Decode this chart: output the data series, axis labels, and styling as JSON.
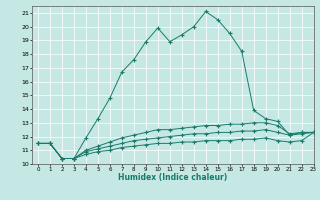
{
  "title": "",
  "xlabel": "Humidex (Indice chaleur)",
  "xlim": [
    -0.5,
    23
  ],
  "ylim": [
    10,
    21.5
  ],
  "xticks": [
    0,
    1,
    2,
    3,
    4,
    5,
    6,
    7,
    8,
    9,
    10,
    11,
    12,
    13,
    14,
    15,
    16,
    17,
    18,
    19,
    20,
    21,
    22,
    23
  ],
  "yticks": [
    10,
    11,
    12,
    13,
    14,
    15,
    16,
    17,
    18,
    19,
    20,
    21
  ],
  "bg_color": "#c5e8e4",
  "grid_outer_color": "#e8d0d0",
  "line_color": "#1a7a6a",
  "grid_color": "#ffffff",
  "line1_x": [
    0,
    1,
    2,
    3,
    4,
    5,
    6,
    7,
    8,
    9,
    10,
    11,
    12,
    13,
    14,
    15,
    16,
    17,
    18,
    19,
    20,
    21,
    22,
    23
  ],
  "line1_y": [
    11.5,
    11.5,
    10.4,
    10.4,
    11.9,
    13.3,
    14.8,
    16.7,
    17.6,
    18.9,
    19.9,
    18.9,
    19.4,
    20.0,
    21.1,
    20.5,
    19.5,
    18.2,
    13.9,
    13.3,
    13.1,
    12.1,
    12.3,
    12.3
  ],
  "line2_x": [
    0,
    1,
    2,
    3,
    4,
    5,
    6,
    7,
    8,
    9,
    10,
    11,
    12,
    13,
    14,
    15,
    16,
    17,
    18,
    19,
    20,
    21,
    22,
    23
  ],
  "line2_y": [
    11.5,
    11.5,
    10.4,
    10.4,
    11.0,
    11.3,
    11.6,
    11.9,
    12.1,
    12.3,
    12.5,
    12.5,
    12.6,
    12.7,
    12.8,
    12.8,
    12.9,
    12.9,
    13.0,
    13.0,
    12.8,
    12.2,
    12.3,
    12.3
  ],
  "line3_x": [
    0,
    1,
    2,
    3,
    4,
    5,
    6,
    7,
    8,
    9,
    10,
    11,
    12,
    13,
    14,
    15,
    16,
    17,
    18,
    19,
    20,
    21,
    22,
    23
  ],
  "line3_y": [
    11.5,
    11.5,
    10.4,
    10.4,
    10.9,
    11.1,
    11.3,
    11.5,
    11.7,
    11.8,
    11.9,
    12.0,
    12.1,
    12.2,
    12.2,
    12.3,
    12.3,
    12.4,
    12.4,
    12.5,
    12.3,
    12.1,
    12.2,
    12.3
  ],
  "line4_x": [
    0,
    1,
    2,
    3,
    4,
    5,
    6,
    7,
    8,
    9,
    10,
    11,
    12,
    13,
    14,
    15,
    16,
    17,
    18,
    19,
    20,
    21,
    22,
    23
  ],
  "line4_y": [
    11.5,
    11.5,
    10.4,
    10.4,
    10.7,
    10.9,
    11.0,
    11.2,
    11.3,
    11.4,
    11.5,
    11.5,
    11.6,
    11.6,
    11.7,
    11.7,
    11.7,
    11.8,
    11.8,
    11.9,
    11.7,
    11.6,
    11.7,
    12.3
  ]
}
